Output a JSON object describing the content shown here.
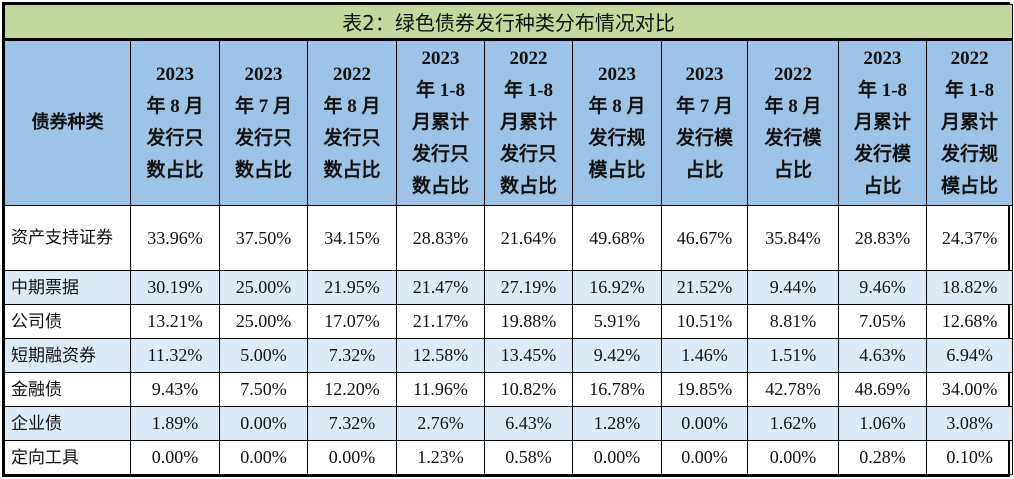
{
  "title": "表2：绿色债券发行种类分布情况对比",
  "colors": {
    "title_bg": "#c4d89b",
    "header_bg": "#9dc3e6",
    "alt_row_bg": "#ddebf7"
  },
  "columns": [
    [
      "债券种类"
    ],
    [
      "2023",
      "年 8 月",
      "发行只",
      "数占比"
    ],
    [
      "2023",
      "年 7 月",
      "发行只",
      "数占比"
    ],
    [
      "2022",
      "年 8 月",
      "发行只",
      "数占比"
    ],
    [
      "2023",
      "年 1-8",
      "月累计",
      "发行只",
      "数占比"
    ],
    [
      "2022",
      "年 1-8",
      "月累计",
      "发行只",
      "数占比"
    ],
    [
      "2023",
      "年 8 月",
      "发行规",
      "模占比"
    ],
    [
      "2023",
      "年 7 月",
      "发行模",
      "占比"
    ],
    [
      "2022",
      "年 8 月",
      "发行模",
      "占比"
    ],
    [
      "2023",
      "年 1-8",
      "月累计",
      "发行模",
      "占比"
    ],
    [
      "2022",
      "年 1-8",
      "月累计",
      "发行规",
      "模占比"
    ]
  ],
  "rows": [
    {
      "name": "资产支持证券",
      "values": [
        "33.96%",
        "37.50%",
        "34.15%",
        "28.83%",
        "21.64%",
        "49.68%",
        "46.67%",
        "35.84%",
        "28.83%",
        "24.37%"
      ]
    },
    {
      "name": "中期票据",
      "values": [
        "30.19%",
        "25.00%",
        "21.95%",
        "21.47%",
        "27.19%",
        "16.92%",
        "21.52%",
        "9.44%",
        "9.46%",
        "18.82%"
      ]
    },
    {
      "name": "公司债",
      "values": [
        "13.21%",
        "25.00%",
        "17.07%",
        "21.17%",
        "19.88%",
        "5.91%",
        "10.51%",
        "8.81%",
        "7.05%",
        "12.68%"
      ]
    },
    {
      "name": "短期融资券",
      "values": [
        "11.32%",
        "5.00%",
        "7.32%",
        "12.58%",
        "13.45%",
        "9.42%",
        "1.46%",
        "1.51%",
        "4.63%",
        "6.94%"
      ]
    },
    {
      "name": "金融债",
      "values": [
        "9.43%",
        "7.50%",
        "12.20%",
        "11.96%",
        "10.82%",
        "16.78%",
        "19.85%",
        "42.78%",
        "48.69%",
        "34.00%"
      ]
    },
    {
      "name": "企业债",
      "values": [
        "1.89%",
        "0.00%",
        "7.32%",
        "2.76%",
        "6.43%",
        "1.28%",
        "0.00%",
        "1.62%",
        "1.06%",
        "3.08%"
      ]
    },
    {
      "name": "定向工具",
      "values": [
        "0.00%",
        "0.00%",
        "0.00%",
        "1.23%",
        "0.58%",
        "0.00%",
        "0.00%",
        "0.00%",
        "0.28%",
        "0.10%"
      ]
    }
  ]
}
